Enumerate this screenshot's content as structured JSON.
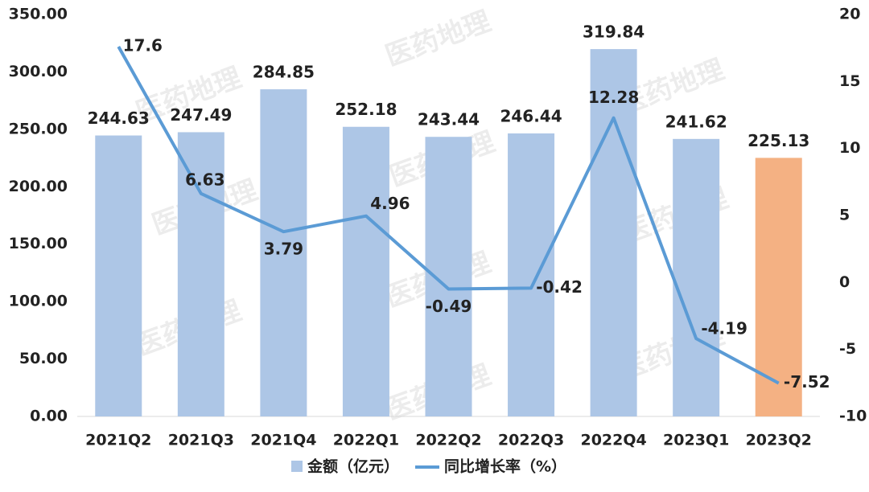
{
  "chart_data": {
    "type": "bar-line",
    "watermark": "医药地理",
    "categories": [
      "2021Q2",
      "2021Q3",
      "2021Q4",
      "2022Q1",
      "2022Q2",
      "2022Q3",
      "2022Q4",
      "2023Q1",
      "2023Q2"
    ],
    "series": [
      {
        "name": "金额（亿元）",
        "type": "bar",
        "color": "#adc6e6",
        "colors": [
          "#adc6e6",
          "#adc6e6",
          "#adc6e6",
          "#adc6e6",
          "#adc6e6",
          "#adc6e6",
          "#adc6e6",
          "#adc6e6",
          "#f4b183"
        ],
        "values": [
          244.63,
          247.49,
          284.85,
          252.18,
          243.44,
          246.44,
          319.84,
          241.62,
          225.13
        ]
      },
      {
        "name": "同比增长率（%）",
        "type": "line",
        "axis": "y2",
        "color": "#5b9bd5",
        "values": [
          17.6,
          6.63,
          3.79,
          4.96,
          -0.49,
          -0.42,
          12.28,
          -4.19,
          -7.52
        ]
      }
    ],
    "ylim": [
      0,
      350
    ],
    "yticks": [
      {
        "value": 0,
        "label": "0.00"
      },
      {
        "value": 50,
        "label": "50.00"
      },
      {
        "value": 100,
        "label": "100.00"
      },
      {
        "value": 150,
        "label": "150.00"
      },
      {
        "value": 200,
        "label": "200.00"
      },
      {
        "value": 250,
        "label": "250.00"
      },
      {
        "value": 300,
        "label": "300.00"
      },
      {
        "value": 350,
        "label": "350.00"
      }
    ],
    "y2lim": [
      -10,
      20
    ],
    "y2ticks": [
      -10,
      -5,
      0,
      5,
      10,
      15,
      20
    ],
    "legend": "bottom"
  }
}
